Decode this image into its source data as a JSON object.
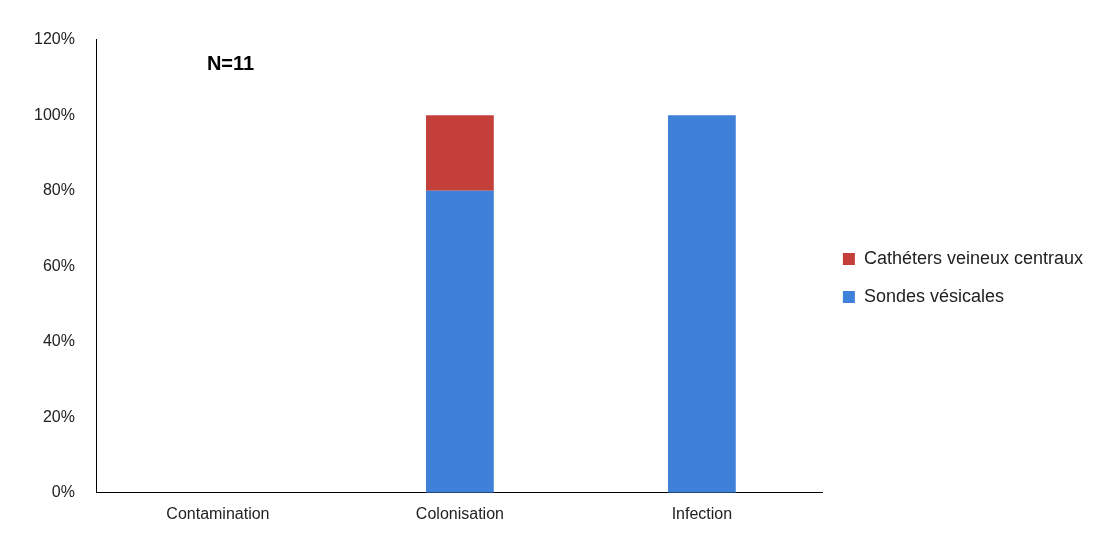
{
  "chart_data": {
    "type": "bar",
    "stacked": true,
    "categories": [
      "Contamination",
      "Colonisation",
      "Infection"
    ],
    "series": [
      {
        "name": "Sondes vésicales",
        "color": "#3f80d8",
        "values": [
          0,
          80,
          100
        ]
      },
      {
        "name": "Cathéters veineux centraux",
        "color": "#c43e3a",
        "values": [
          0,
          20,
          0
        ]
      }
    ],
    "ylim": [
      0,
      120
    ],
    "yticks": [
      {
        "value": 0,
        "label": "0%"
      },
      {
        "value": 20,
        "label": "20%"
      },
      {
        "value": 40,
        "label": "40%"
      },
      {
        "value": 60,
        "label": "60%"
      },
      {
        "value": 80,
        "label": "80%"
      },
      {
        "value": 100,
        "label": "100%"
      },
      {
        "value": 120,
        "label": "120%"
      }
    ],
    "grid": false,
    "legend": "right",
    "annotations": [
      "N=11"
    ]
  }
}
